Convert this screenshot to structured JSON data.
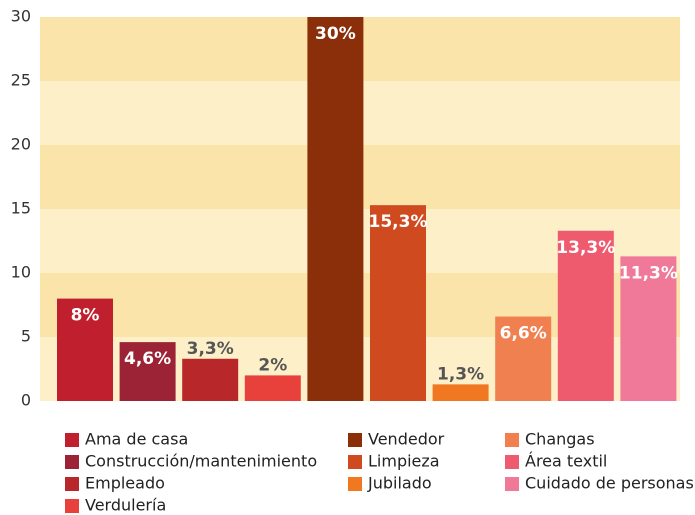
{
  "chart_data": {
    "type": "bar",
    "series": [
      {
        "name": "Ama de casa",
        "color": "#c0202e",
        "values": [
          8
        ],
        "value_labels": [
          "8%"
        ]
      },
      {
        "name": "Construcción/mantenimiento",
        "color": "#9b2335",
        "values": [
          4.6
        ],
        "value_labels": [
          "4,6%"
        ]
      },
      {
        "name": "Empleado",
        "color": "#b8282a",
        "values": [
          3.3
        ],
        "value_labels": [
          "3,3%"
        ]
      },
      {
        "name": "Verdulería",
        "color": "#e8413c",
        "values": [
          2
        ],
        "value_labels": [
          "2%"
        ]
      },
      {
        "name": "Vendedor",
        "color": "#8b2e0a",
        "values": [
          30
        ],
        "value_labels": [
          "30%"
        ]
      },
      {
        "name": "Limpieza",
        "color": "#d04a20",
        "values": [
          15.3
        ],
        "value_labels": [
          "15,3%"
        ]
      },
      {
        "name": "Jubilado",
        "color": "#f07820",
        "values": [
          1.3
        ],
        "value_labels": [
          "1,3%"
        ]
      },
      {
        "name": "Changas",
        "color": "#f08050",
        "values": [
          6.6
        ],
        "value_labels": [
          "6,6%"
        ]
      },
      {
        "name": "Área textil",
        "color": "#ee5a6e",
        "values": [
          13.3
        ],
        "value_labels": [
          "13,3%"
        ]
      },
      {
        "name": "Cuidado de personas",
        "color": "#f07898",
        "values": [
          11.3
        ],
        "value_labels": [
          "11,3%"
        ]
      }
    ],
    "ylim": [
      0,
      30
    ],
    "yticks": [
      0,
      5,
      10,
      15,
      20,
      25,
      30
    ],
    "grid": true,
    "legend": "bottom"
  }
}
